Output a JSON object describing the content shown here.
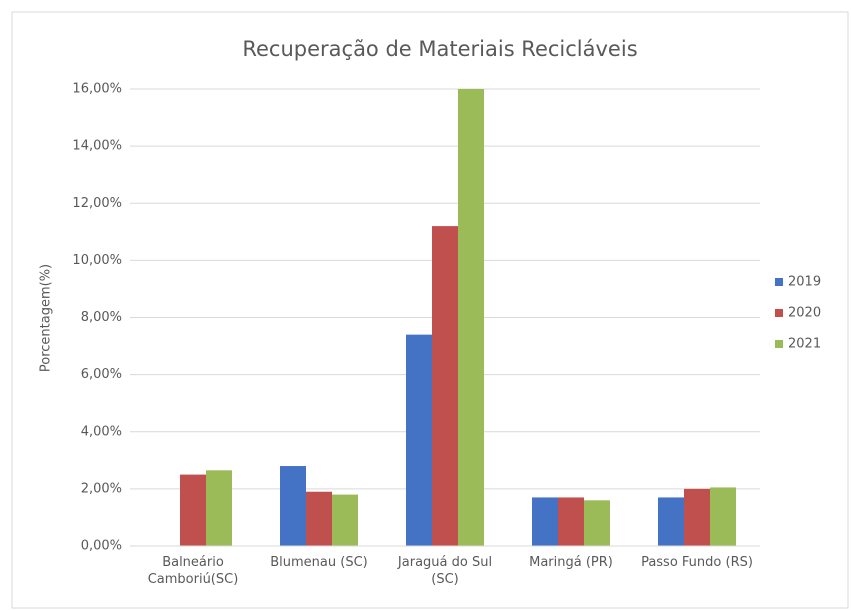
{
  "chart_data": {
    "type": "bar",
    "title": "Recuperação de Materiais Recicláveis",
    "y_label": "Porcentagem(%)",
    "categories": [
      "Balneário Camboriú(SC)",
      "Blumenau (SC)",
      "Jaraguá do Sul (SC)",
      "Maringá (PR)",
      "Passo Fundo (RS)"
    ],
    "series": [
      {
        "name": "2019",
        "color": "#4472c4",
        "values": [
          null,
          2.8,
          7.4,
          1.7,
          1.7
        ]
      },
      {
        "name": "2020",
        "color": "#c0504d",
        "values": [
          2.5,
          1.9,
          11.2,
          1.7,
          2.0
        ]
      },
      {
        "name": "2021",
        "color": "#9bbb59",
        "values": [
          2.65,
          1.8,
          16.0,
          1.6,
          2.05
        ]
      }
    ],
    "ylim": [
      0,
      16
    ],
    "yticks": [
      {
        "value": 0,
        "label": "0,00%"
      },
      {
        "value": 2,
        "label": "2,00%"
      },
      {
        "value": 4,
        "label": "4,00%"
      },
      {
        "value": 6,
        "label": "6,00%"
      },
      {
        "value": 8,
        "label": "8,00%"
      },
      {
        "value": 10,
        "label": "10,00%"
      },
      {
        "value": 12,
        "label": "12,00%"
      },
      {
        "value": 14,
        "label": "14,00%"
      },
      {
        "value": 16,
        "label": "16,00%"
      }
    ],
    "grid": true,
    "legend": "right"
  }
}
